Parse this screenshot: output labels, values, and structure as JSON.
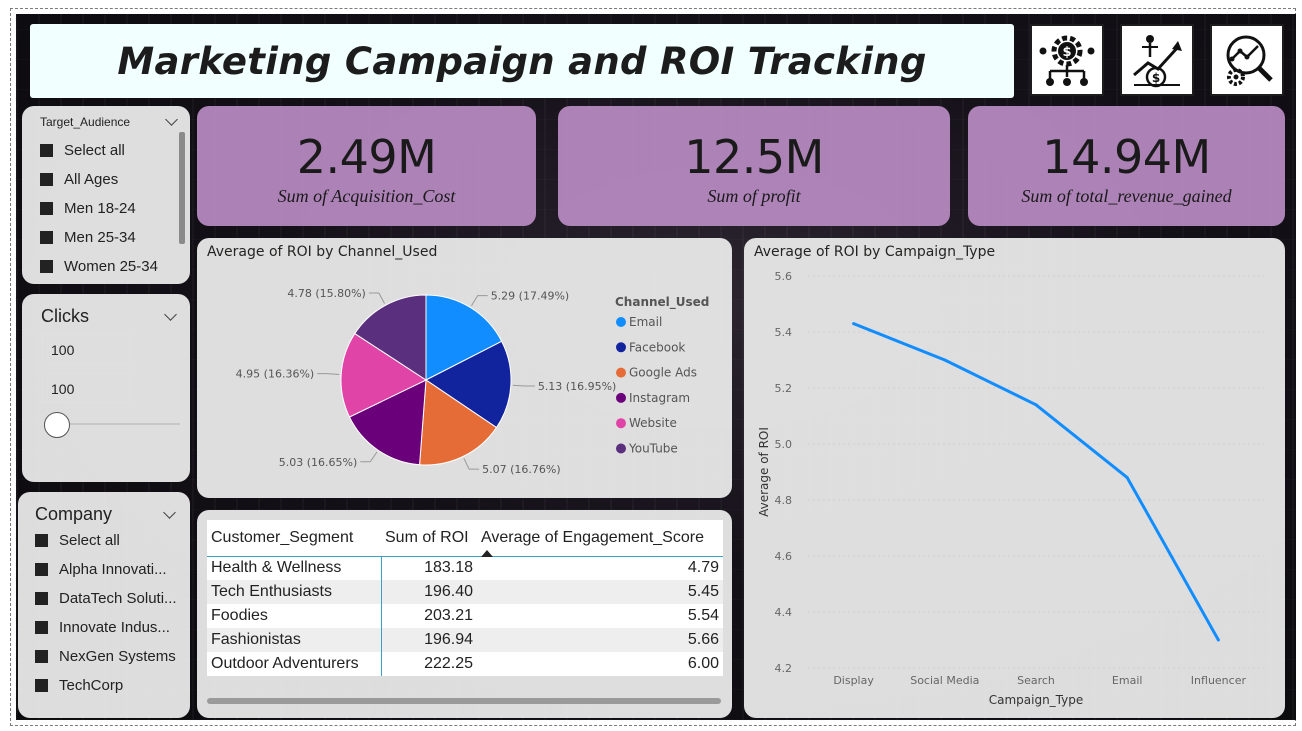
{
  "title": "Marketing Campaign and ROI Tracking",
  "header_icons": [
    "gear-dollar-network-icon",
    "growth-investment-icon",
    "analytics-gear-icon"
  ],
  "slicers": {
    "target_audience": {
      "header": "Target_Audience",
      "items": [
        "Select all",
        "All Ages",
        "Men 18-24",
        "Men 25-34",
        "Women 25-34"
      ]
    },
    "clicks": {
      "header": "Clicks",
      "min_value": "100",
      "max_value": "100"
    },
    "company": {
      "header": "Company",
      "items": [
        "Select all",
        "Alpha Innovati...",
        "DataTech Soluti...",
        "Innovate Indus...",
        "NexGen Systems",
        "TechCorp"
      ]
    }
  },
  "kpis": [
    {
      "value": "2.49M",
      "label": "Sum of Acquisition_Cost"
    },
    {
      "value": "12.5M",
      "label": "Sum of profit"
    },
    {
      "value": "14.94M",
      "label": "Sum of total_revenue_gained"
    }
  ],
  "pie": {
    "title": "Average of ROI by Channel_Used",
    "legend_title": "Channel_Used"
  },
  "line": {
    "title": "Average of ROI by Campaign_Type"
  },
  "table": {
    "headers": [
      "Customer_Segment",
      "Sum of ROI",
      "Average of Engagement_Score"
    ],
    "rows": [
      [
        "Health & Wellness",
        "183.18",
        "4.79"
      ],
      [
        "Tech Enthusiasts",
        "196.40",
        "5.45"
      ],
      [
        "Foodies",
        "203.21",
        "5.54"
      ],
      [
        "Fashionistas",
        "196.94",
        "5.66"
      ],
      [
        "Outdoor Adventurers",
        "222.25",
        "6.00"
      ]
    ]
  },
  "chart_data": [
    {
      "type": "pie",
      "title": "Average of ROI by Channel_Used",
      "legend_title": "Channel_Used",
      "legend_position": "right",
      "categories": [
        "Email",
        "Facebook",
        "Google Ads",
        "Instagram",
        "Website",
        "YouTube"
      ],
      "values": [
        5.29,
        5.13,
        5.07,
        5.03,
        4.95,
        4.78
      ],
      "data_labels": [
        "5.29 (17.49%)",
        "5.13 (16.95%)",
        "5.07 (16.76%)",
        "5.03 (16.65%)",
        "4.95 (16.36%)",
        "4.78 (15.80%)"
      ],
      "colors": [
        "#118DFF",
        "#12239E",
        "#E66C37",
        "#6B007B",
        "#E044A7",
        "#5A2F7E"
      ]
    },
    {
      "type": "line",
      "title": "Average of ROI by Campaign_Type",
      "xlabel": "Campaign_Type",
      "ylabel": "Average of ROI",
      "categories": [
        "Display",
        "Social Media",
        "Search",
        "Email",
        "Influencer"
      ],
      "values": [
        5.43,
        5.3,
        5.14,
        4.88,
        4.3
      ],
      "ylim": [
        4.2,
        5.6
      ],
      "yticks": [
        "5.6",
        "5.4",
        "5.2",
        "5.0",
        "4.8",
        "4.6",
        "4.4",
        "4.2"
      ],
      "color": "#118DFF",
      "grid": true
    }
  ]
}
